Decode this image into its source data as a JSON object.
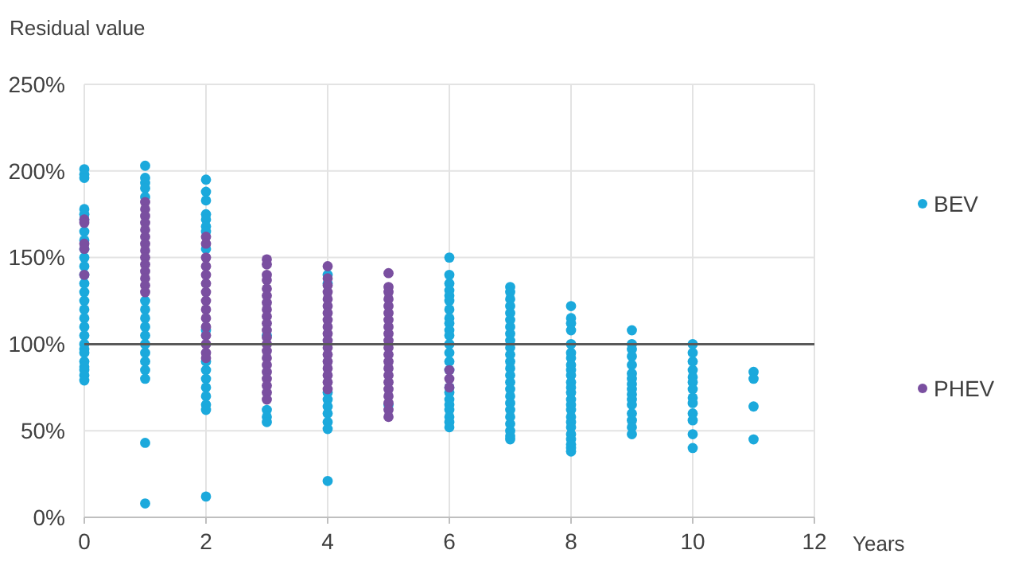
{
  "chart_data": {
    "type": "scatter",
    "ylabel": "Residual value",
    "xlabel": "Years",
    "xlim": [
      0,
      12
    ],
    "xticks": [
      0,
      2,
      4,
      6,
      8,
      10,
      12
    ],
    "ylim": [
      0,
      250
    ],
    "yticks": [
      {
        "value": 0,
        "label": "0%"
      },
      {
        "value": 50,
        "label": "50%"
      },
      {
        "value": 100,
        "label": "100%"
      },
      {
        "value": 150,
        "label": "150%"
      },
      {
        "value": 200,
        "label": "200%"
      },
      {
        "value": 250,
        "label": "250%"
      }
    ],
    "grid": true,
    "legend": "right",
    "marker": "circle",
    "ref_lines": [
      {
        "axis": "y",
        "value": 100,
        "label": null,
        "color": "#595959"
      }
    ],
    "series": [
      {
        "name": "BEV",
        "color": "#1ba9dc",
        "x": [
          0,
          0,
          0,
          0,
          0,
          0,
          0,
          0,
          0,
          0,
          0,
          0,
          0,
          0,
          0,
          0,
          0,
          0,
          0,
          0,
          0,
          0,
          0,
          0,
          0,
          0,
          0,
          1,
          1,
          1,
          1,
          1,
          1,
          1,
          1,
          1,
          1,
          1,
          1,
          1,
          1,
          1,
          1,
          1,
          2,
          2,
          2,
          2,
          2,
          2,
          2,
          2,
          2,
          2,
          2,
          2,
          2,
          2,
          2,
          2,
          2,
          3,
          3,
          3,
          3,
          4,
          4,
          4,
          4,
          4,
          4,
          4,
          4,
          4,
          5,
          6,
          6,
          6,
          6,
          6,
          6,
          6,
          6,
          6,
          6,
          6,
          6,
          6,
          6,
          6,
          6,
          6,
          6,
          6,
          6,
          6,
          6,
          6,
          7,
          7,
          7,
          7,
          7,
          7,
          7,
          7,
          7,
          7,
          7,
          7,
          7,
          7,
          7,
          7,
          7,
          7,
          7,
          7,
          7,
          7,
          7,
          7,
          8,
          8,
          8,
          8,
          8,
          8,
          8,
          8,
          8,
          8,
          8,
          8,
          8,
          8,
          8,
          8,
          8,
          8,
          8,
          8,
          8,
          8,
          8,
          8,
          9,
          9,
          9,
          9,
          9,
          9,
          9,
          9,
          9,
          9,
          9,
          9,
          9,
          9,
          9,
          9,
          10,
          10,
          10,
          10,
          10,
          10,
          10,
          10,
          10,
          10,
          10,
          10,
          10,
          11,
          11,
          11,
          11
        ],
        "values": [
          201,
          198,
          196,
          178,
          175,
          172,
          165,
          160,
          155,
          150,
          145,
          140,
          135,
          130,
          125,
          120,
          115,
          110,
          105,
          100,
          97,
          95,
          90,
          87,
          85,
          82,
          79,
          203,
          196,
          193,
          190,
          185,
          125,
          120,
          115,
          110,
          105,
          100,
          95,
          90,
          85,
          80,
          43,
          8,
          195,
          188,
          183,
          175,
          172,
          168,
          165,
          155,
          108,
          90,
          85,
          80,
          75,
          70,
          65,
          62,
          12,
          105,
          62,
          58,
          55,
          140,
          135,
          72,
          68,
          64,
          60,
          55,
          51,
          21,
          65,
          150,
          140,
          135,
          131,
          128,
          125,
          120,
          115,
          112,
          108,
          105,
          100,
          95,
          90,
          85,
          75,
          72,
          68,
          65,
          62,
          58,
          55,
          52,
          133,
          130,
          126,
          122,
          118,
          114,
          110,
          106,
          102,
          98,
          94,
          90,
          86,
          82,
          78,
          74,
          70,
          66,
          62,
          58,
          54,
          50,
          47,
          45,
          122,
          115,
          112,
          108,
          100,
          95,
          92,
          88,
          85,
          82,
          78,
          75,
          72,
          68,
          65,
          62,
          58,
          55,
          52,
          48,
          45,
          42,
          40,
          38,
          108,
          100,
          97,
          93,
          88,
          83,
          80,
          77,
          74,
          71,
          68,
          65,
          60,
          56,
          52,
          48,
          100,
          95,
          90,
          85,
          81,
          78,
          74,
          69,
          66,
          60,
          56,
          48,
          40,
          84,
          80,
          64,
          45
        ]
      },
      {
        "name": "PHEV",
        "color": "#7a4fa0",
        "x": [
          0,
          0,
          0,
          0,
          0,
          1,
          1,
          1,
          1,
          1,
          1,
          1,
          1,
          1,
          1,
          1,
          1,
          1,
          1,
          2,
          2,
          2,
          2,
          2,
          2,
          2,
          2,
          2,
          2,
          2,
          2,
          2,
          2,
          2,
          3,
          3,
          3,
          3,
          3,
          3,
          3,
          3,
          3,
          3,
          3,
          3,
          3,
          3,
          3,
          3,
          3,
          3,
          3,
          3,
          3,
          4,
          4,
          4,
          4,
          4,
          4,
          4,
          4,
          4,
          4,
          4,
          4,
          4,
          4,
          4,
          4,
          4,
          4,
          5,
          5,
          5,
          5,
          5,
          5,
          5,
          5,
          5,
          5,
          5,
          5,
          5,
          5,
          5,
          5,
          5,
          5,
          5,
          5,
          5,
          6,
          6,
          6
        ],
        "values": [
          172,
          170,
          158,
          155,
          140,
          182,
          178,
          174,
          170,
          166,
          162,
          158,
          154,
          150,
          146,
          142,
          138,
          134,
          130,
          162,
          158,
          150,
          145,
          140,
          135,
          130,
          125,
          120,
          115,
          110,
          105,
          100,
          95,
          92,
          149,
          146,
          140,
          137,
          132,
          128,
          124,
          120,
          116,
          112,
          108,
          104,
          100,
          96,
          92,
          88,
          84,
          80,
          76,
          72,
          68,
          145,
          138,
          134,
          130,
          126,
          122,
          118,
          114,
          110,
          106,
          102,
          98,
          94,
          90,
          86,
          82,
          78,
          74,
          141,
          133,
          130,
          126,
          122,
          118,
          114,
          110,
          106,
          102,
          98,
          94,
          90,
          86,
          82,
          78,
          74,
          70,
          66,
          62,
          58,
          85,
          80,
          75
        ]
      }
    ]
  }
}
